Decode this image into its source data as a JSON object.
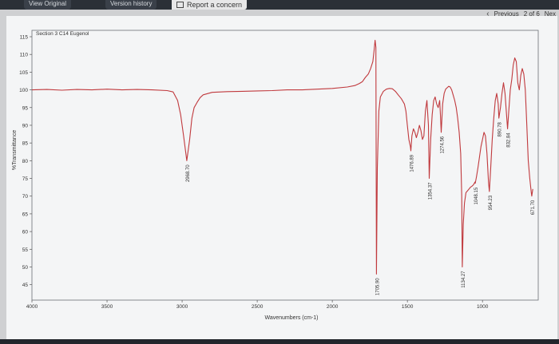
{
  "toolbar": {
    "tabs": [
      "View Original",
      "Version history"
    ],
    "report_label": "Report a concern"
  },
  "pager": {
    "previous_label": "Previous",
    "page_info": "2 of 6",
    "next_label": "Nex"
  },
  "chart_data": {
    "type": "line",
    "title": "Section 3 C14 Eugenol",
    "xlabel": "Wavenumbers (cm-1)",
    "ylabel": "%Transmittance",
    "xlim": [
      4000,
      650
    ],
    "ylim": [
      42,
      115
    ],
    "x_ticks": [
      4000,
      3500,
      3000,
      2500,
      2000,
      1500,
      1000
    ],
    "y_ticks": [
      115,
      110,
      105,
      100,
      95,
      90,
      85,
      80,
      75,
      70,
      65,
      60,
      55,
      50,
      45
    ],
    "series_color": "#c0393d",
    "series": [
      {
        "x": [
          4000,
          3900,
          3800,
          3700,
          3600,
          3500,
          3400,
          3300,
          3200,
          3100,
          3060,
          3030,
          3010,
          2990,
          2968.7,
          2950,
          2935,
          2920,
          2900,
          2880,
          2860,
          2800,
          2700,
          2600,
          2500,
          2400,
          2300,
          2200,
          2100,
          2000,
          1900,
          1850,
          1820,
          1800,
          1780,
          1760,
          1745,
          1730,
          1722,
          1715,
          1710,
          1705.9,
          1700,
          1690,
          1680,
          1660,
          1640,
          1620,
          1600,
          1580,
          1560,
          1540,
          1520,
          1510,
          1500,
          1490,
          1480,
          1476.9,
          1470,
          1460,
          1450,
          1440,
          1430,
          1420,
          1410,
          1400,
          1390,
          1380,
          1370,
          1360,
          1354.4,
          1345,
          1335,
          1325,
          1315,
          1305,
          1295,
          1285,
          1280,
          1274.6,
          1265,
          1255,
          1245,
          1235,
          1225,
          1215,
          1205,
          1195,
          1185,
          1175,
          1165,
          1155,
          1145,
          1138,
          1134.3,
          1128,
          1120,
          1110,
          1100,
          1090,
          1080,
          1070,
          1060,
          1050,
          1048.2,
          1040,
          1030,
          1020,
          1010,
          1000,
          990,
          980,
          970,
          960,
          954.2,
          945,
          935,
          925,
          915,
          905,
          895,
          890.8,
          880,
          870,
          860,
          850,
          840,
          832.8,
          825,
          815,
          805,
          795,
          785,
          775,
          765,
          755,
          745,
          735,
          725,
          715,
          705,
          695,
          685,
          675,
          671.7,
          665
        ],
        "y": [
          100,
          100.1,
          99.9,
          100.1,
          100,
          100.2,
          100,
          100.1,
          100,
          99.8,
          99.4,
          97,
          93,
          87,
          80,
          86,
          92,
          95,
          96.5,
          97.8,
          98.6,
          99.3,
          99.5,
          99.6,
          99.7,
          99.8,
          100,
          100,
          100.2,
          100.4,
          100.8,
          101.2,
          101.8,
          102.3,
          103.5,
          104.5,
          106,
          108,
          111,
          114,
          112,
          48,
          78,
          94,
          98,
          99.6,
          100.2,
          100.4,
          100.3,
          99.6,
          98.5,
          97.5,
          96,
          94,
          90,
          86,
          84,
          82.8,
          87,
          89,
          88,
          86.5,
          88,
          90,
          88.5,
          86,
          87,
          94,
          97,
          90,
          75,
          86,
          93,
          97,
          98,
          96,
          95,
          97,
          93,
          88,
          96,
          99,
          100.2,
          100.6,
          101,
          100.8,
          100,
          98.5,
          97,
          95,
          92,
          88,
          82,
          70,
          50,
          62,
          68,
          71,
          71.5,
          72,
          72.5,
          72.8,
          73.2,
          74,
          73.6,
          75.5,
          78,
          81,
          84,
          86,
          88,
          87,
          82,
          74,
          71.3,
          78,
          86,
          92,
          97,
          99,
          96,
          92,
          95,
          99,
          102,
          99,
          93,
          89,
          94,
          100,
          103,
          107,
          109,
          108,
          102,
          100,
          104,
          106,
          104.5,
          100,
          90,
          80,
          75,
          71,
          70,
          72
        ]
      }
    ],
    "peak_labels": [
      {
        "x": 2968.7,
        "y": 80,
        "text": "2968.70"
      },
      {
        "x": 1705.9,
        "y": 48,
        "text": "1705.90"
      },
      {
        "x": 1476.9,
        "y": 82.8,
        "text": "1476.89"
      },
      {
        "x": 1354.4,
        "y": 75,
        "text": "1354.37"
      },
      {
        "x": 1274.6,
        "y": 88,
        "text": "1274.56"
      },
      {
        "x": 1134.3,
        "y": 50,
        "text": "1134.27"
      },
      {
        "x": 1048.2,
        "y": 73.6,
        "text": "1048.15"
      },
      {
        "x": 954.2,
        "y": 71.3,
        "text": "954.23"
      },
      {
        "x": 890.8,
        "y": 92,
        "text": "890.78"
      },
      {
        "x": 832.8,
        "y": 89,
        "text": "832.84"
      },
      {
        "x": 671.7,
        "y": 70,
        "text": "671.70"
      }
    ]
  }
}
